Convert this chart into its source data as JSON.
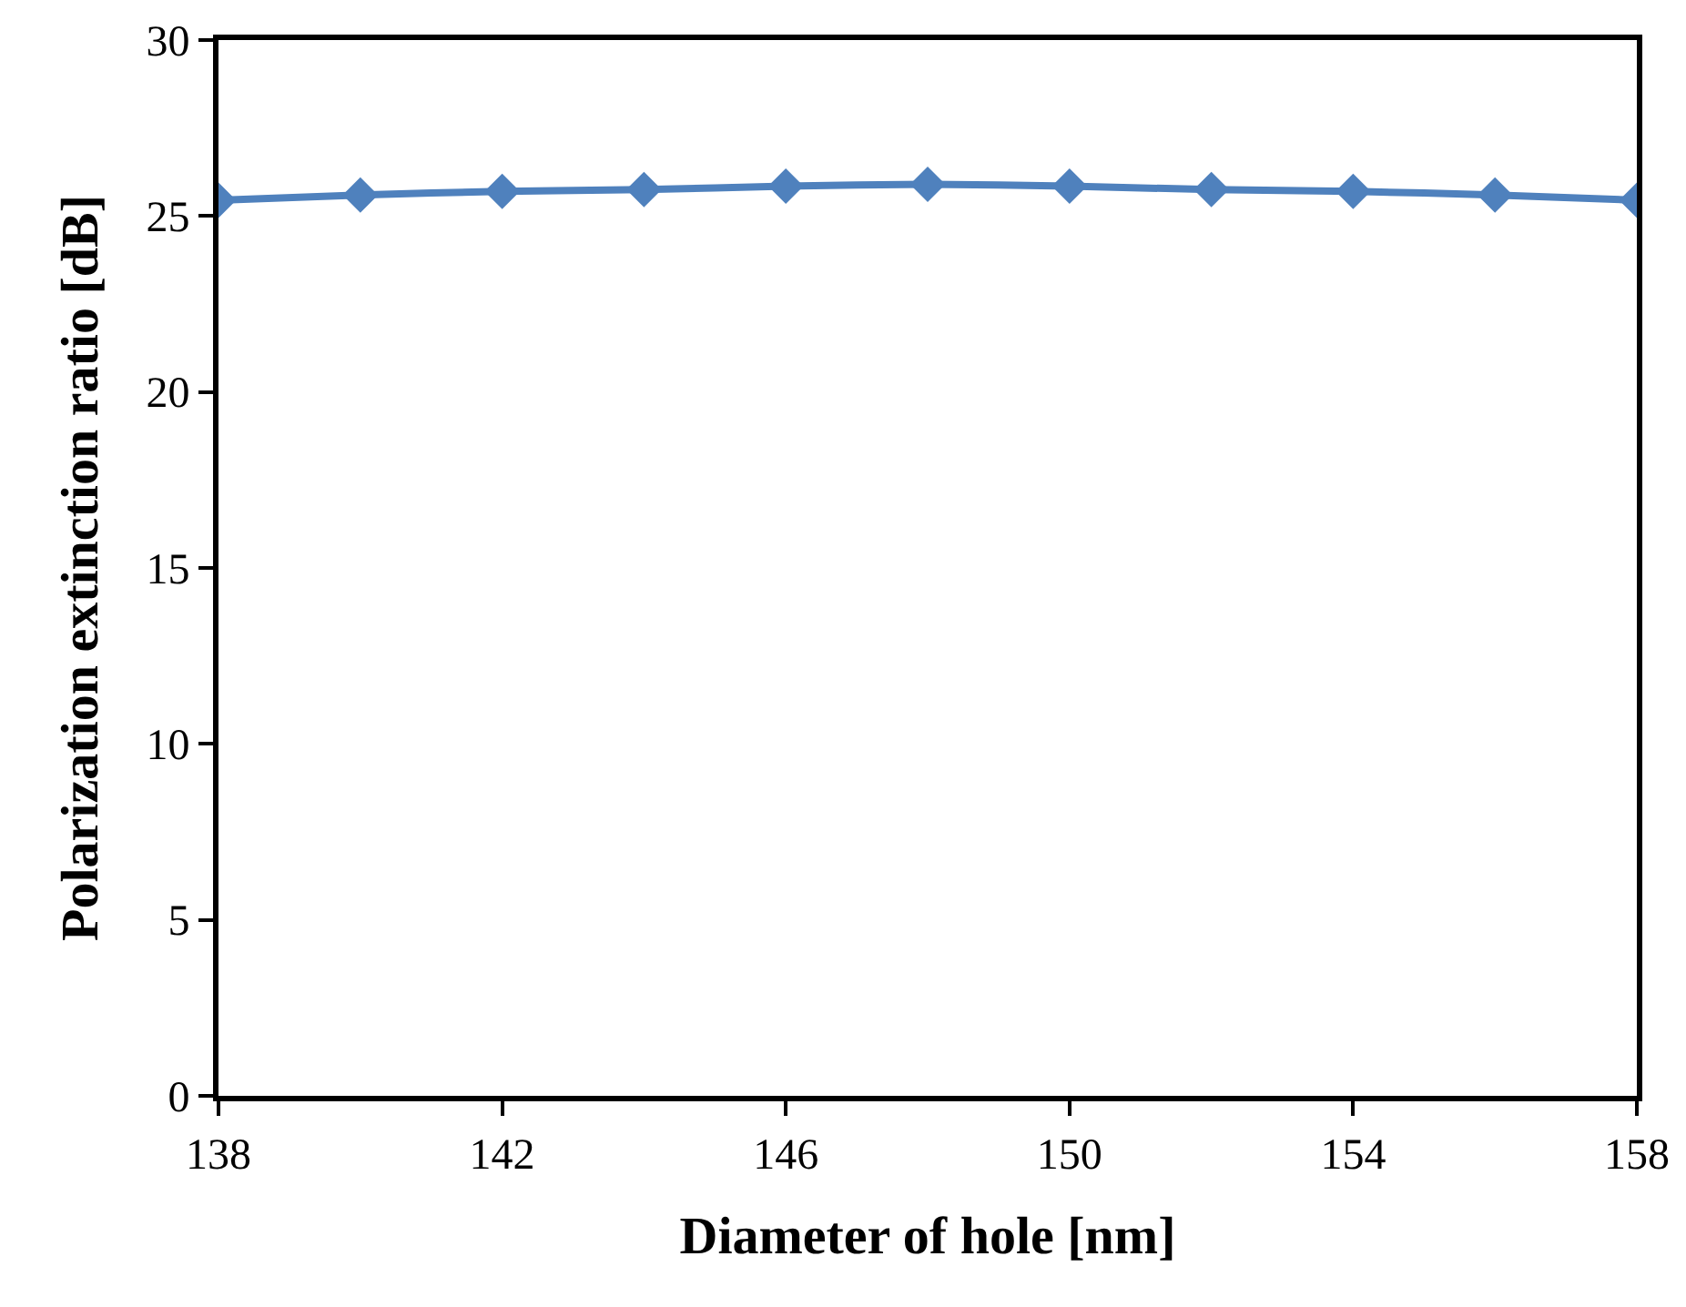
{
  "chart_data": {
    "type": "line",
    "xlabel": "Diameter of hole [nm]",
    "ylabel": "Polarization extinction ratio [dB]",
    "x": [
      138,
      140,
      142,
      144,
      146,
      148,
      150,
      152,
      154,
      156,
      158
    ],
    "series": [
      {
        "color": "#4f81bd",
        "values": [
          25.45,
          25.6,
          25.7,
          25.75,
          25.85,
          25.9,
          25.85,
          25.75,
          25.7,
          25.6,
          25.45
        ]
      }
    ],
    "xlim": [
      138,
      158
    ],
    "xticks": [
      138,
      142,
      146,
      150,
      154,
      158
    ],
    "ylim": [
      0,
      30
    ],
    "yticks": [
      0,
      5,
      10,
      15,
      20,
      25,
      30
    ],
    "grid": false,
    "legend": false,
    "marker": "diamond",
    "line_style": "solid"
  }
}
